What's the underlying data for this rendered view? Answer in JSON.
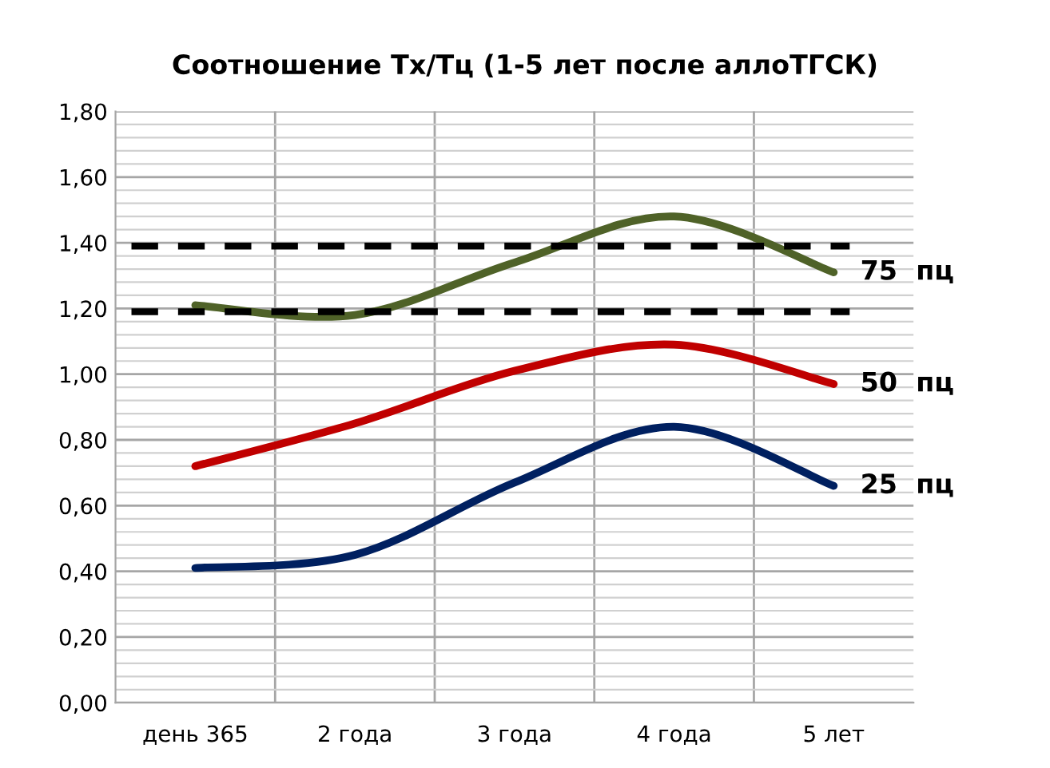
{
  "chart_data": {
    "type": "line",
    "title": "Соотношение Tx/Tц (1-5 лет после аллоТГСК)",
    "categories": [
      "день 365",
      "2 года",
      "3 года",
      "4 года",
      "5 лет"
    ],
    "series": [
      {
        "name": "75  пц",
        "color": "#4f6228",
        "values": [
          1.21,
          1.18,
          1.34,
          1.48,
          1.31
        ]
      },
      {
        "name": "50  пц",
        "color": "#c00000",
        "values": [
          0.72,
          0.85,
          1.01,
          1.09,
          0.97
        ]
      },
      {
        "name": "25  пц",
        "color": "#002060",
        "values": [
          0.41,
          0.45,
          0.67,
          0.84,
          0.66
        ]
      }
    ],
    "ylim": [
      0,
      1.8
    ],
    "yticks": [
      {
        "value": 0,
        "label": "0,00"
      },
      {
        "value": 0.2,
        "label": "0,20"
      },
      {
        "value": 0.4,
        "label": "0,40"
      },
      {
        "value": 0.6,
        "label": "0,60"
      },
      {
        "value": 0.8,
        "label": "0,80"
      },
      {
        "value": 1.0,
        "label": "1,00"
      },
      {
        "value": 1.2,
        "label": "1,20"
      },
      {
        "value": 1.4,
        "label": "1,40"
      },
      {
        "value": 1.6,
        "label": "1,60"
      },
      {
        "value": 1.8,
        "label": "1,80"
      }
    ],
    "ref_lines": [
      {
        "axis": "y",
        "value": 1.39,
        "color": "#000000",
        "line_style": "dashed"
      },
      {
        "axis": "y",
        "value": 1.19,
        "color": "#000000",
        "line_style": "dashed"
      }
    ],
    "grid": true,
    "line_style": "solid",
    "marker": "none",
    "legend": false
  }
}
